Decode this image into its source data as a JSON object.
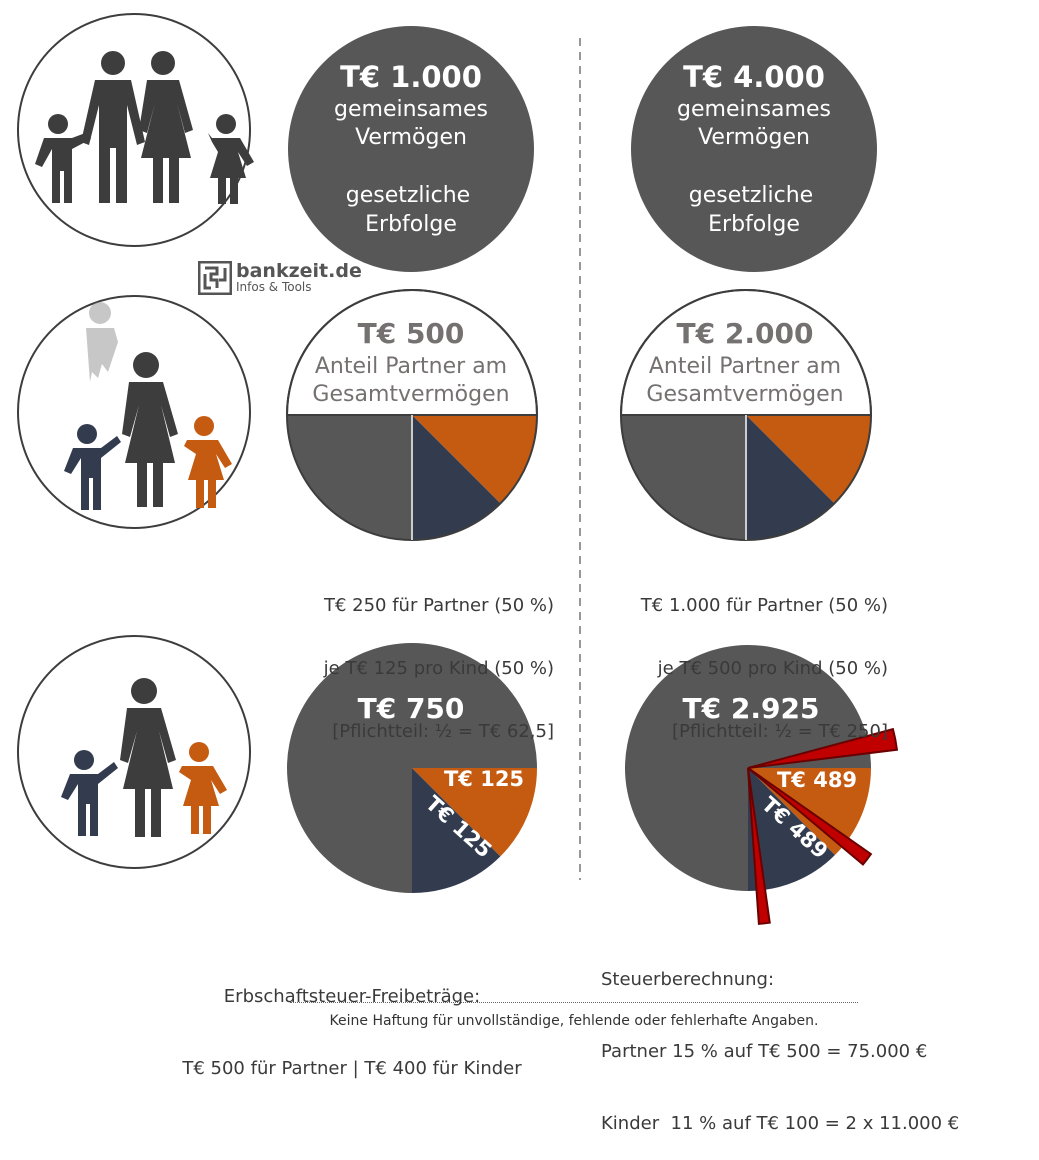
{
  "brand": {
    "name": "bankzeit.de",
    "tagline": "Infos & Tools"
  },
  "scenarios": [
    {
      "id": "left",
      "estate": {
        "amount": "T€ 1.000",
        "line1": "gemeinsames",
        "line2": "Vermögen",
        "line3": "gesetzliche",
        "line4": "Erbfolge"
      },
      "partner_share": {
        "amount": "T€ 500",
        "line1": "Anteil Partner am",
        "line2": "Gesamtvermögen"
      },
      "distribution": [
        "T€ 250 für Partner (50 %)",
        "je T€ 125 pro Kind (50 %)",
        "[Pflichtteil: ½ = T€ 62,5]"
      ],
      "inheritance": {
        "total": "T€ 750",
        "child1": "T€ 125",
        "child2": "T€ 125"
      }
    },
    {
      "id": "right",
      "estate": {
        "amount": "T€ 4.000",
        "line1": "gemeinsames",
        "line2": "Vermögen",
        "line3": "gesetzliche",
        "line4": "Erbfolge"
      },
      "partner_share": {
        "amount": "T€ 2.000",
        "line1": "Anteil Partner am",
        "line2": "Gesamtvermögen"
      },
      "distribution": [
        "T€ 1.000 für Partner (50 %)",
        "je T€ 500 pro Kind (50 %)",
        "[Pflichtteil: ½ = T€ 250]"
      ],
      "inheritance": {
        "total": "T€ 2.925",
        "child1": "T€ 489",
        "child2": "T€ 489"
      }
    }
  ],
  "allowances": {
    "line1": "Erbschaftsteuer-Freibeträge:",
    "line2": "T€ 500 für Partner | T€ 400 für Kinder"
  },
  "tax": {
    "line1": "Steuerberechnung:",
    "line2": "Partner 15 % auf T€ 500 = 75.000 €",
    "line3": "Kinder  11 % auf T€ 100 = 2 x 11.000 €"
  },
  "disclaimer": "Keine Haftung für unvollständige, fehlende oder fehlerhafte Angaben.",
  "colors": {
    "dark_gray": "#575757",
    "person_gray": "#3d3d3d",
    "navy": "#323c4e",
    "orange": "#c55a11",
    "red": "#c00000",
    "caption_gray": "#757171"
  }
}
